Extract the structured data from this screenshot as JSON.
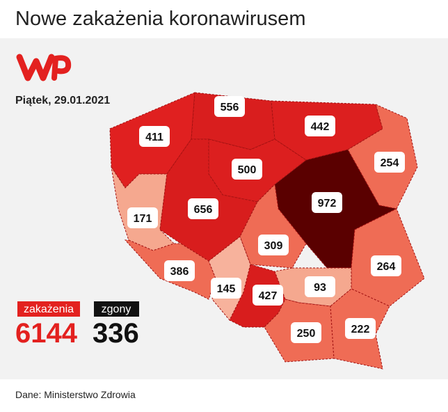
{
  "header": {
    "title": "Nowe zakażenia koronawirusem"
  },
  "date": "Piątek, 29.01.2021",
  "regions": [
    411,
    556,
    442,
    254,
    500,
    972,
    171,
    656,
    309,
    264,
    386,
    145,
    427,
    93,
    250,
    222
  ],
  "totals": {
    "cases_label": "zakażenia",
    "cases": 6144,
    "deaths_label": "zgony",
    "deaths": 336
  },
  "source": "Dane: Ministerstwo Zdrowia"
}
